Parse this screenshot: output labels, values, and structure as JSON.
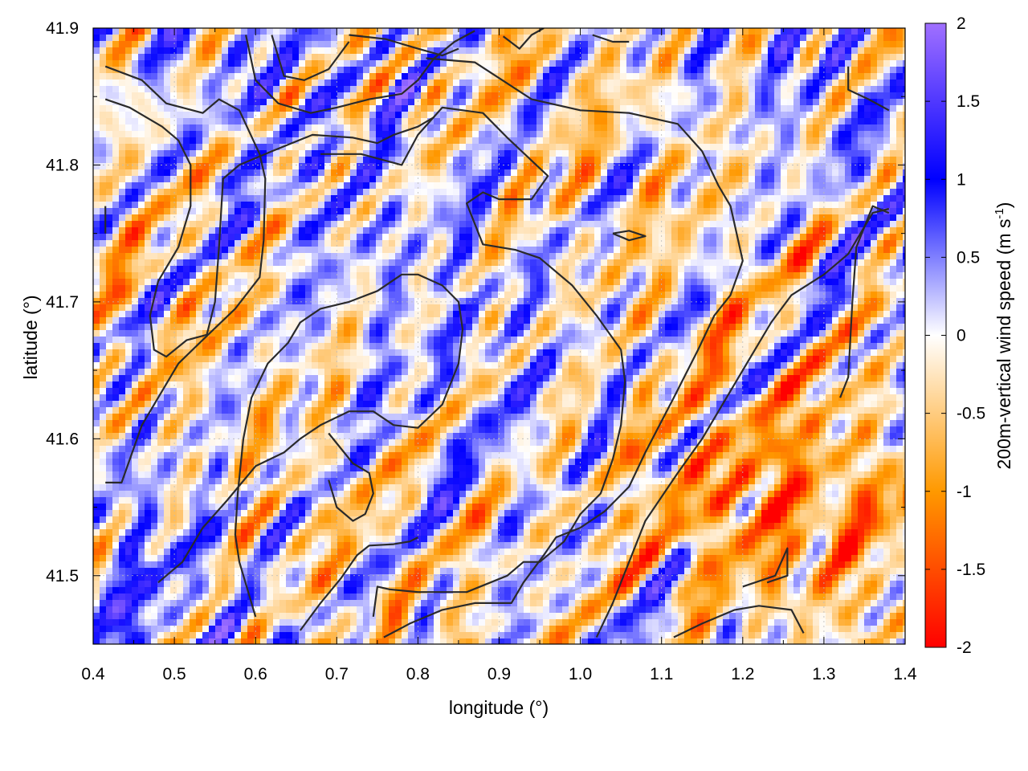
{
  "chart_data": {
    "type": "heatmap",
    "title": "",
    "xlabel": "longitude (°)",
    "ylabel": "latitude (°)",
    "xlim": [
      0.4,
      1.4
    ],
    "ylim": [
      41.45,
      41.9
    ],
    "x_ticks": [
      "0.4",
      "0.5",
      "0.6",
      "0.7",
      "0.8",
      "0.9",
      "1.0",
      "1.1",
      "1.2",
      "1.3",
      "1.4"
    ],
    "y_ticks": [
      "41.5",
      "41.6",
      "41.7",
      "41.8",
      "41.9"
    ],
    "grid": true,
    "colorbar": {
      "label_main": "200m-vertical wind speed (m s",
      "label_sup": "-1",
      "label_close": ")",
      "range": [
        -2,
        2
      ],
      "ticks": [
        "2",
        "1.5",
        "1",
        "0.5",
        "0",
        "-0.5",
        "-1",
        "-1.5",
        "-2"
      ],
      "colors": {
        "min": "#ff0000",
        "neg_mid": "#ff9900",
        "zero": "#ffffff",
        "pos_mid": "#0000ff",
        "max": "#a070ff"
      }
    },
    "contour_color": "#2a2a2a",
    "contours": [
      [
        [
          0.415,
          41.872
        ],
        [
          0.46,
          41.862
        ],
        [
          0.49,
          41.845
        ],
        [
          0.535,
          41.838
        ],
        [
          0.555,
          41.848
        ],
        [
          0.58,
          41.84
        ],
        [
          0.605,
          41.808
        ],
        [
          0.612,
          41.79
        ],
        [
          0.61,
          41.745
        ],
        [
          0.605,
          41.718
        ],
        [
          0.575,
          41.695
        ],
        [
          0.545,
          41.678
        ],
        [
          0.505,
          41.655
        ],
        [
          0.46,
          41.61
        ],
        [
          0.435,
          41.568
        ],
        [
          0.415,
          41.568
        ]
      ],
      [
        [
          0.415,
          41.848
        ],
        [
          0.445,
          41.842
        ],
        [
          0.485,
          41.828
        ],
        [
          0.505,
          41.818
        ],
        [
          0.52,
          41.8
        ],
        [
          0.52,
          41.77
        ],
        [
          0.505,
          41.74
        ],
        [
          0.48,
          41.715
        ],
        [
          0.47,
          41.69
        ],
        [
          0.475,
          41.665
        ],
        [
          0.49,
          41.66
        ],
        [
          0.515,
          41.672
        ],
        [
          0.54,
          41.676
        ],
        [
          0.55,
          41.7
        ],
        [
          0.555,
          41.74
        ],
        [
          0.56,
          41.79
        ],
        [
          0.58,
          41.8
        ],
        [
          0.62,
          41.81
        ],
        [
          0.67,
          41.822
        ],
        [
          0.72,
          41.82
        ],
        [
          0.75,
          41.816
        ],
        [
          0.77,
          41.822
        ],
        [
          0.8,
          41.828
        ],
        [
          0.82,
          41.835
        ]
      ],
      [
        [
          0.62,
          41.895
        ],
        [
          0.635,
          41.865
        ],
        [
          0.66,
          41.862
        ],
        [
          0.69,
          41.87
        ],
        [
          0.715,
          41.89
        ]
      ],
      [
        [
          0.68,
          41.808
        ],
        [
          0.73,
          41.808
        ],
        [
          0.78,
          41.8
        ],
        [
          0.8,
          41.822
        ],
        [
          0.83,
          41.842
        ],
        [
          0.88,
          41.838
        ],
        [
          0.91,
          41.82
        ],
        [
          0.96,
          41.792
        ],
        [
          0.94,
          41.775
        ],
        [
          0.9,
          41.775
        ],
        [
          0.88,
          41.78
        ],
        [
          0.86,
          41.772
        ],
        [
          0.88,
          41.742
        ],
        [
          0.92,
          41.738
        ],
        [
          0.95,
          41.732
        ],
        [
          0.99,
          41.712
        ],
        [
          1.02,
          41.69
        ],
        [
          1.05,
          41.665
        ],
        [
          1.055,
          41.642
        ],
        [
          1.05,
          41.61
        ],
        [
          1.04,
          41.585
        ],
        [
          1.025,
          41.56
        ],
        [
          1.0,
          41.545
        ],
        [
          0.98,
          41.525
        ],
        [
          0.95,
          41.51
        ],
        [
          0.93,
          41.51
        ],
        [
          0.91,
          41.5
        ],
        [
          0.86,
          41.488
        ],
        [
          0.83,
          41.488
        ],
        [
          0.8,
          41.488
        ],
        [
          0.765,
          41.49
        ],
        [
          0.75,
          41.492
        ],
        [
          0.745,
          41.47
        ]
      ],
      [
        [
          0.81,
          41.878
        ],
        [
          0.87,
          41.875
        ],
        [
          0.94,
          41.848
        ],
        [
          1.0,
          41.84
        ],
        [
          1.06,
          41.838
        ],
        [
          1.12,
          41.83
        ],
        [
          1.15,
          41.81
        ],
        [
          1.17,
          41.785
        ],
        [
          1.185,
          41.77
        ],
        [
          1.2,
          41.73
        ],
        [
          1.185,
          41.705
        ],
        [
          1.165,
          41.69
        ],
        [
          1.145,
          41.665
        ],
        [
          1.115,
          41.63
        ],
        [
          1.08,
          41.59
        ],
        [
          1.06,
          41.565
        ],
        [
          1.03,
          41.547
        ],
        [
          1.0,
          41.535
        ],
        [
          0.97,
          41.528
        ],
        [
          0.955,
          41.515
        ],
        [
          0.93,
          41.495
        ],
        [
          0.915,
          41.48
        ],
        [
          0.87,
          41.48
        ],
        [
          0.83,
          41.475
        ],
        [
          0.79,
          41.465
        ],
        [
          0.758,
          41.455
        ]
      ],
      [
        [
          0.588,
          41.895
        ],
        [
          0.6,
          41.862
        ],
        [
          0.628,
          41.845
        ],
        [
          0.668,
          41.838
        ],
        [
          0.7,
          41.842
        ],
        [
          0.74,
          41.848
        ],
        [
          0.78,
          41.852
        ],
        [
          0.8,
          41.862
        ],
        [
          0.82,
          41.878
        ],
        [
          0.845,
          41.89
        ],
        [
          0.87,
          41.898
        ]
      ],
      [
        [
          0.715,
          41.895
        ],
        [
          0.76,
          41.892
        ],
        [
          0.8,
          41.885
        ],
        [
          0.83,
          41.88
        ],
        [
          0.85,
          41.885
        ]
      ],
      [
        [
          0.905,
          41.894
        ],
        [
          0.925,
          41.885
        ],
        [
          0.94,
          41.895
        ],
        [
          0.955,
          41.9
        ]
      ],
      [
        [
          1.015,
          41.895
        ],
        [
          1.04,
          41.89
        ],
        [
          1.06,
          41.89
        ]
      ],
      [
        [
          1.04,
          41.75
        ],
        [
          1.06,
          41.745
        ],
        [
          1.08,
          41.748
        ],
        [
          1.06,
          41.752
        ],
        [
          1.04,
          41.75
        ]
      ],
      [
        [
          0.48,
          41.495
        ],
        [
          0.51,
          41.51
        ],
        [
          0.535,
          41.535
        ],
        [
          0.565,
          41.555
        ],
        [
          0.6,
          41.58
        ],
        [
          0.635,
          41.59
        ],
        [
          0.655,
          41.6
        ],
        [
          0.68,
          41.61
        ],
        [
          0.715,
          41.62
        ],
        [
          0.745,
          41.62
        ],
        [
          0.77,
          41.61
        ],
        [
          0.8,
          41.608
        ],
        [
          0.83,
          41.625
        ],
        [
          0.85,
          41.655
        ],
        [
          0.855,
          41.68
        ],
        [
          0.85,
          41.7
        ],
        [
          0.83,
          41.712
        ],
        [
          0.8,
          41.72
        ],
        [
          0.78,
          41.72
        ],
        [
          0.75,
          41.708
        ],
        [
          0.715,
          41.7
        ],
        [
          0.68,
          41.695
        ],
        [
          0.655,
          41.685
        ],
        [
          0.64,
          41.67
        ],
        [
          0.615,
          41.655
        ],
        [
          0.595,
          41.63
        ],
        [
          0.585,
          41.6
        ],
        [
          0.578,
          41.56
        ],
        [
          0.575,
          41.53
        ],
        [
          0.58,
          41.51
        ],
        [
          0.59,
          41.49
        ],
        [
          0.6,
          41.47
        ]
      ],
      [
        [
          0.69,
          41.604
        ],
        [
          0.72,
          41.582
        ],
        [
          0.74,
          41.575
        ],
        [
          0.745,
          41.56
        ],
        [
          0.735,
          41.545
        ],
        [
          0.72,
          41.54
        ],
        [
          0.7,
          41.55
        ],
        [
          0.69,
          41.57
        ]
      ],
      [
        [
          0.655,
          41.46
        ],
        [
          0.68,
          41.48
        ],
        [
          0.705,
          41.498
        ],
        [
          0.725,
          41.515
        ],
        [
          0.74,
          41.522
        ],
        [
          0.77,
          41.523
        ],
        [
          0.79,
          41.525
        ],
        [
          0.8,
          41.528
        ]
      ],
      [
        [
          1.02,
          41.455
        ],
        [
          1.04,
          41.48
        ],
        [
          1.06,
          41.51
        ],
        [
          1.08,
          41.54
        ],
        [
          1.12,
          41.575
        ],
        [
          1.15,
          41.6
        ],
        [
          1.18,
          41.63
        ],
        [
          1.21,
          41.66
        ],
        [
          1.235,
          41.685
        ],
        [
          1.26,
          41.705
        ],
        [
          1.3,
          41.72
        ],
        [
          1.33,
          41.735
        ],
        [
          1.36,
          41.765
        ],
        [
          1.38,
          41.768
        ]
      ],
      [
        [
          1.32,
          41.63
        ],
        [
          1.33,
          41.645
        ],
        [
          1.335,
          41.7
        ],
        [
          1.34,
          41.74
        ],
        [
          1.36,
          41.77
        ],
        [
          1.38,
          41.765
        ]
      ],
      [
        [
          1.2,
          41.492
        ],
        [
          1.24,
          41.5
        ],
        [
          1.255,
          41.52
        ],
        [
          1.255,
          41.5
        ],
        [
          1.23,
          41.495
        ]
      ],
      [
        [
          1.115,
          41.455
        ],
        [
          1.15,
          41.465
        ],
        [
          1.19,
          41.475
        ],
        [
          1.22,
          41.478
        ],
        [
          1.26,
          41.475
        ],
        [
          1.275,
          41.458
        ]
      ],
      [
        [
          1.33,
          41.872
        ],
        [
          1.33,
          41.855
        ],
        [
          1.355,
          41.848
        ],
        [
          1.38,
          41.84
        ]
      ],
      [
        [
          0.415,
          41.77
        ],
        [
          0.415,
          41.75
        ]
      ]
    ]
  }
}
